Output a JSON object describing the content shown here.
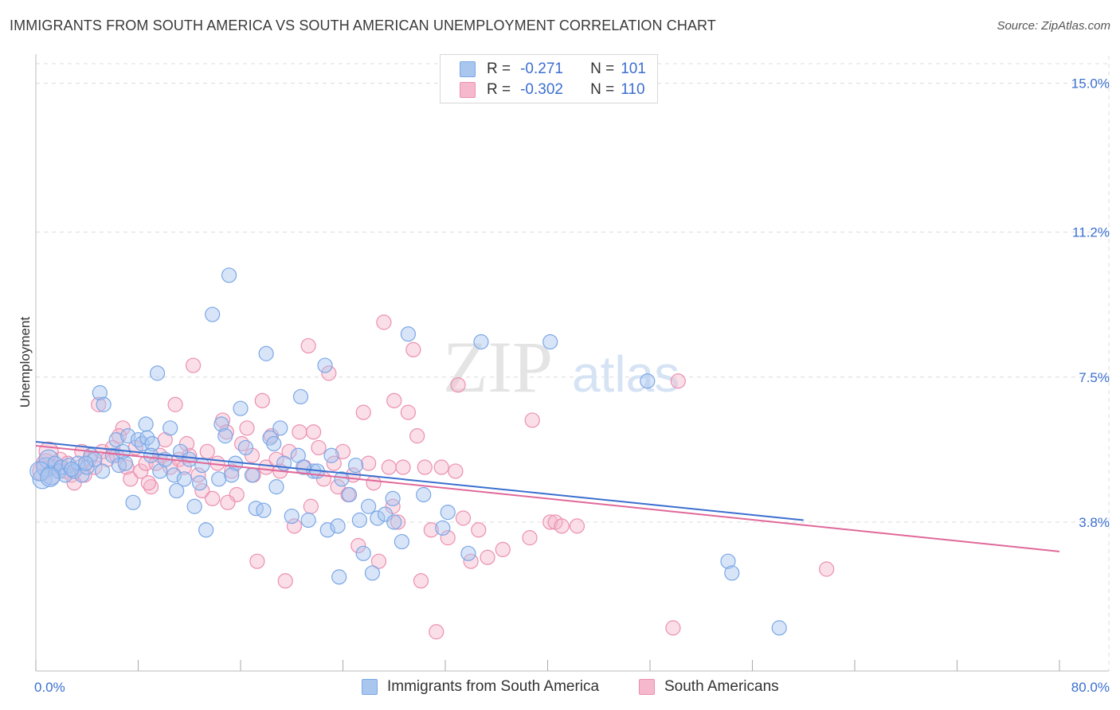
{
  "title": "IMMIGRANTS FROM SOUTH AMERICA VS SOUTH AMERICAN UNEMPLOYMENT CORRELATION CHART",
  "source": "Source: ZipAtlas.com",
  "watermark": {
    "zip": "ZIP",
    "atlas": "atlas"
  },
  "legend_top": {
    "rows": [
      {
        "r_label": "R =",
        "r_value": "-0.271",
        "n_label": "N =",
        "n_value": "101"
      },
      {
        "r_label": "R =",
        "r_value": "-0.302",
        "n_label": "N =",
        "n_value": "110"
      }
    ]
  },
  "legend_bottom": {
    "items": [
      {
        "label": "Immigrants from South America"
      },
      {
        "label": "South Americans"
      }
    ]
  },
  "colors": {
    "blue_fill": "#a9c6ef",
    "blue_stroke": "#7aa7e6",
    "blue_line": "#3b6fd0",
    "pink_fill": "#f5b8cc",
    "pink_stroke": "#ec8fb0",
    "pink_line": "#e0699a",
    "grid": "#dcdcdc",
    "axis_text": "#3b6fd0"
  },
  "chart_data": {
    "type": "scatter",
    "title": "IMMIGRANTS FROM SOUTH AMERICA VS SOUTH AMERICAN UNEMPLOYMENT CORRELATION CHART",
    "xlabel": "",
    "ylabel": "Unemployment",
    "xlim": [
      0,
      80
    ],
    "ylim": [
      0,
      15.5
    ],
    "x_tick_labels": [
      "0.0%",
      "80.0%"
    ],
    "y_ticks": [
      3.8,
      7.5,
      11.2,
      15.0
    ],
    "y_tick_labels": [
      "3.8%",
      "7.5%",
      "11.2%",
      "15.0%"
    ],
    "grid": true,
    "legend_position": "top-center",
    "series": [
      {
        "name": "Immigrants from South America",
        "color": "blue",
        "r": -0.271,
        "n": 101,
        "trend": {
          "x0": 0,
          "y0": 5.85,
          "x1": 60,
          "y1": 3.85
        },
        "points": [
          [
            0.5,
            4.9
          ],
          [
            0.8,
            5.2
          ],
          [
            1.0,
            5.4
          ],
          [
            1.2,
            5.0
          ],
          [
            1.5,
            5.3
          ],
          [
            1.8,
            5.1
          ],
          [
            2.0,
            5.2
          ],
          [
            2.3,
            5.0
          ],
          [
            2.6,
            5.25
          ],
          [
            3.0,
            5.1
          ],
          [
            3.3,
            5.3
          ],
          [
            3.6,
            5.0
          ],
          [
            4.0,
            5.2
          ],
          [
            4.3,
            5.5
          ],
          [
            4.6,
            5.4
          ],
          [
            5.0,
            7.1
          ],
          [
            5.3,
            6.8
          ],
          [
            5.2,
            5.1
          ],
          [
            6.0,
            5.5
          ],
          [
            6.3,
            5.9
          ],
          [
            6.5,
            5.25
          ],
          [
            7.0,
            5.3
          ],
          [
            7.2,
            6.0
          ],
          [
            7.6,
            4.3
          ],
          [
            8.0,
            5.9
          ],
          [
            8.3,
            5.8
          ],
          [
            8.6,
            6.3
          ],
          [
            8.7,
            5.95
          ],
          [
            9.1,
            5.8
          ],
          [
            9.5,
            7.6
          ],
          [
            9.7,
            5.1
          ],
          [
            10.1,
            5.4
          ],
          [
            10.5,
            6.2
          ],
          [
            10.8,
            5.0
          ],
          [
            11.0,
            4.6
          ],
          [
            11.3,
            5.6
          ],
          [
            11.6,
            4.9
          ],
          [
            12.0,
            5.4
          ],
          [
            12.4,
            4.2
          ],
          [
            13.0,
            5.25
          ],
          [
            13.3,
            3.6
          ],
          [
            13.8,
            9.1
          ],
          [
            14.3,
            4.9
          ],
          [
            14.5,
            6.3
          ],
          [
            14.8,
            6.0
          ],
          [
            15.1,
            10.1
          ],
          [
            15.6,
            5.3
          ],
          [
            16.0,
            6.7
          ],
          [
            16.4,
            5.7
          ],
          [
            16.9,
            5.0
          ],
          [
            17.2,
            4.15
          ],
          [
            17.8,
            4.1
          ],
          [
            18.0,
            8.1
          ],
          [
            18.3,
            5.95
          ],
          [
            18.8,
            4.7
          ],
          [
            19.1,
            6.2
          ],
          [
            19.4,
            5.3
          ],
          [
            20.0,
            3.95
          ],
          [
            20.5,
            5.5
          ],
          [
            20.7,
            7.0
          ],
          [
            21.3,
            3.85
          ],
          [
            21.7,
            5.1
          ],
          [
            22.0,
            5.1
          ],
          [
            22.6,
            7.8
          ],
          [
            22.8,
            3.6
          ],
          [
            23.1,
            5.5
          ],
          [
            23.6,
            3.7
          ],
          [
            23.9,
            4.9
          ],
          [
            23.7,
            2.4
          ],
          [
            24.5,
            4.5
          ],
          [
            25.0,
            5.25
          ],
          [
            25.3,
            3.85
          ],
          [
            25.6,
            3.0
          ],
          [
            26.3,
            2.5
          ],
          [
            26.7,
            3.9
          ],
          [
            27.3,
            4.0
          ],
          [
            27.9,
            4.4
          ],
          [
            28.0,
            3.8
          ],
          [
            28.6,
            3.3
          ],
          [
            29.1,
            8.6
          ],
          [
            30.3,
            4.5
          ],
          [
            31.8,
            3.65
          ],
          [
            32.2,
            4.05
          ],
          [
            33.8,
            3.0
          ],
          [
            34.8,
            8.4
          ],
          [
            40.2,
            8.4
          ],
          [
            47.8,
            7.4
          ],
          [
            54.1,
            2.8
          ],
          [
            54.4,
            2.5
          ],
          [
            58.1,
            1.1
          ],
          [
            0.3,
            5.1
          ],
          [
            1.1,
            4.95
          ],
          [
            2.8,
            5.15
          ],
          [
            3.9,
            5.3
          ],
          [
            6.8,
            5.6
          ],
          [
            9.0,
            5.5
          ],
          [
            12.8,
            4.8
          ],
          [
            15.3,
            5.0
          ],
          [
            18.6,
            5.8
          ],
          [
            20.9,
            5.2
          ],
          [
            26.0,
            4.2
          ]
        ]
      },
      {
        "name": "South Americans",
        "color": "pink",
        "r": -0.302,
        "n": 110,
        "trend": {
          "x0": 0,
          "y0": 5.75,
          "x1": 80,
          "y1": 3.05
        },
        "points": [
          [
            0.5,
            5.1
          ],
          [
            0.8,
            5.3
          ],
          [
            1.2,
            5.0
          ],
          [
            1.5,
            5.2
          ],
          [
            1.9,
            5.4
          ],
          [
            2.2,
            5.1
          ],
          [
            2.5,
            5.3
          ],
          [
            2.8,
            5.0
          ],
          [
            3.0,
            4.8
          ],
          [
            3.4,
            5.2
          ],
          [
            3.8,
            5.0
          ],
          [
            4.2,
            5.4
          ],
          [
            4.6,
            5.2
          ],
          [
            4.9,
            6.8
          ],
          [
            5.2,
            5.6
          ],
          [
            5.6,
            5.4
          ],
          [
            6.0,
            5.7
          ],
          [
            6.3,
            5.5
          ],
          [
            6.8,
            6.2
          ],
          [
            7.1,
            5.2
          ],
          [
            7.4,
            4.9
          ],
          [
            7.8,
            5.7
          ],
          [
            8.2,
            5.1
          ],
          [
            8.6,
            5.3
          ],
          [
            9.0,
            4.7
          ],
          [
            9.4,
            5.3
          ],
          [
            9.7,
            5.5
          ],
          [
            10.1,
            5.9
          ],
          [
            10.5,
            5.2
          ],
          [
            10.9,
            6.8
          ],
          [
            11.2,
            5.4
          ],
          [
            11.6,
            5.2
          ],
          [
            12.0,
            5.5
          ],
          [
            12.3,
            7.8
          ],
          [
            12.7,
            5.0
          ],
          [
            13.0,
            4.6
          ],
          [
            13.4,
            5.6
          ],
          [
            13.8,
            4.4
          ],
          [
            14.2,
            5.3
          ],
          [
            14.6,
            6.4
          ],
          [
            14.9,
            6.1
          ],
          [
            15.3,
            5.1
          ],
          [
            15.7,
            4.5
          ],
          [
            16.1,
            5.8
          ],
          [
            16.5,
            6.2
          ],
          [
            16.9,
            5.5
          ],
          [
            17.3,
            2.8
          ],
          [
            17.7,
            6.9
          ],
          [
            18.0,
            5.2
          ],
          [
            18.4,
            6.0
          ],
          [
            18.8,
            5.4
          ],
          [
            19.1,
            5.1
          ],
          [
            19.5,
            2.3
          ],
          [
            19.8,
            5.6
          ],
          [
            20.2,
            3.7
          ],
          [
            20.6,
            6.1
          ],
          [
            21.0,
            5.2
          ],
          [
            21.3,
            8.3
          ],
          [
            21.7,
            6.1
          ],
          [
            22.1,
            5.7
          ],
          [
            22.5,
            4.9
          ],
          [
            22.9,
            7.6
          ],
          [
            23.3,
            5.3
          ],
          [
            23.6,
            4.7
          ],
          [
            24.0,
            5.6
          ],
          [
            24.4,
            4.5
          ],
          [
            24.8,
            5.0
          ],
          [
            25.2,
            3.2
          ],
          [
            25.6,
            6.6
          ],
          [
            26.0,
            5.3
          ],
          [
            26.4,
            4.8
          ],
          [
            26.8,
            2.8
          ],
          [
            27.2,
            8.9
          ],
          [
            27.6,
            5.2
          ],
          [
            27.9,
            4.2
          ],
          [
            28.3,
            3.8
          ],
          [
            28.7,
            5.2
          ],
          [
            29.1,
            6.6
          ],
          [
            29.5,
            8.2
          ],
          [
            29.8,
            6.0
          ],
          [
            30.1,
            2.3
          ],
          [
            30.4,
            5.2
          ],
          [
            30.9,
            3.6
          ],
          [
            31.3,
            1.0
          ],
          [
            31.7,
            5.2
          ],
          [
            32.2,
            3.4
          ],
          [
            33.0,
            7.3
          ],
          [
            33.4,
            3.9
          ],
          [
            34.0,
            2.8
          ],
          [
            34.6,
            3.6
          ],
          [
            35.3,
            2.9
          ],
          [
            36.5,
            3.1
          ],
          [
            38.6,
            3.4
          ],
          [
            38.8,
            6.4
          ],
          [
            40.2,
            3.8
          ],
          [
            40.6,
            3.8
          ],
          [
            41.1,
            3.7
          ],
          [
            42.3,
            3.7
          ],
          [
            50.2,
            7.4
          ],
          [
            49.8,
            1.1
          ],
          [
            61.8,
            2.6
          ],
          [
            1.0,
            5.6
          ],
          [
            3.6,
            5.6
          ],
          [
            6.5,
            6.0
          ],
          [
            8.8,
            4.8
          ],
          [
            11.8,
            5.8
          ],
          [
            15.0,
            4.3
          ],
          [
            17.0,
            5.0
          ],
          [
            21.5,
            4.2
          ],
          [
            28.0,
            6.9
          ],
          [
            32.8,
            5.1
          ]
        ]
      }
    ]
  }
}
